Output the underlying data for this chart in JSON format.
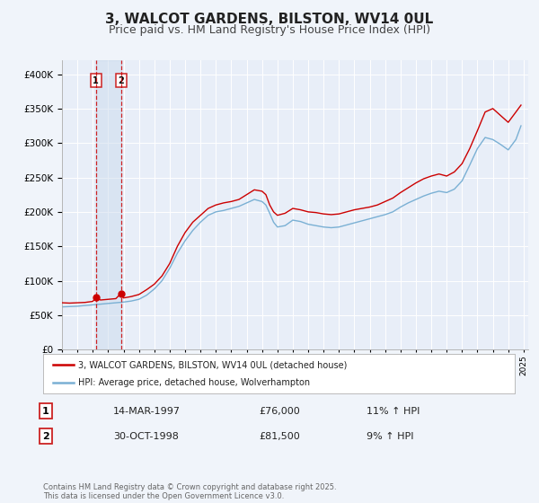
{
  "title": "3, WALCOT GARDENS, BILSTON, WV14 0UL",
  "subtitle": "Price paid vs. HM Land Registry's House Price Index (HPI)",
  "title_fontsize": 11,
  "subtitle_fontsize": 9,
  "ylim": [
    0,
    420000
  ],
  "yticks": [
    0,
    50000,
    100000,
    150000,
    200000,
    250000,
    300000,
    350000,
    400000
  ],
  "bg_color": "#f0f4fa",
  "plot_bg_color": "#e8eef8",
  "grid_color": "#ffffff",
  "line_color_red": "#cc0000",
  "line_color_blue": "#7ab0d4",
  "legend_label_red": "3, WALCOT GARDENS, BILSTON, WV14 0UL (detached house)",
  "legend_label_blue": "HPI: Average price, detached house, Wolverhampton",
  "transaction1_date": "14-MAR-1997",
  "transaction1_price": 76000,
  "transaction1_pct": "11% ↑ HPI",
  "transaction2_date": "30-OCT-1998",
  "transaction2_price": 81500,
  "transaction2_pct": "9% ↑ HPI",
  "footer": "Contains HM Land Registry data © Crown copyright and database right 2025.\nThis data is licensed under the Open Government Licence v3.0.",
  "transaction1_year": 1997.2,
  "transaction2_year": 1998.83,
  "hpi_red_data": [
    [
      1995.0,
      68000
    ],
    [
      1995.5,
      67500
    ],
    [
      1996.0,
      68000
    ],
    [
      1996.5,
      68500
    ],
    [
      1997.0,
      70000
    ],
    [
      1997.2,
      76000
    ],
    [
      1997.5,
      72000
    ],
    [
      1998.0,
      73000
    ],
    [
      1998.5,
      74000
    ],
    [
      1998.83,
      81500
    ],
    [
      1999.0,
      75000
    ],
    [
      1999.5,
      77000
    ],
    [
      2000.0,
      80000
    ],
    [
      2000.5,
      87000
    ],
    [
      2001.0,
      95000
    ],
    [
      2001.5,
      107000
    ],
    [
      2002.0,
      125000
    ],
    [
      2002.5,
      150000
    ],
    [
      2003.0,
      170000
    ],
    [
      2003.5,
      185000
    ],
    [
      2004.0,
      195000
    ],
    [
      2004.5,
      205000
    ],
    [
      2005.0,
      210000
    ],
    [
      2005.5,
      213000
    ],
    [
      2006.0,
      215000
    ],
    [
      2006.5,
      218000
    ],
    [
      2007.0,
      225000
    ],
    [
      2007.5,
      232000
    ],
    [
      2008.0,
      230000
    ],
    [
      2008.25,
      225000
    ],
    [
      2008.5,
      210000
    ],
    [
      2008.75,
      200000
    ],
    [
      2009.0,
      195000
    ],
    [
      2009.5,
      198000
    ],
    [
      2010.0,
      205000
    ],
    [
      2010.5,
      203000
    ],
    [
      2011.0,
      200000
    ],
    [
      2011.5,
      199000
    ],
    [
      2012.0,
      197000
    ],
    [
      2012.5,
      196000
    ],
    [
      2013.0,
      197000
    ],
    [
      2013.5,
      200000
    ],
    [
      2014.0,
      203000
    ],
    [
      2014.5,
      205000
    ],
    [
      2015.0,
      207000
    ],
    [
      2015.5,
      210000
    ],
    [
      2016.0,
      215000
    ],
    [
      2016.5,
      220000
    ],
    [
      2017.0,
      228000
    ],
    [
      2017.5,
      235000
    ],
    [
      2018.0,
      242000
    ],
    [
      2018.5,
      248000
    ],
    [
      2019.0,
      252000
    ],
    [
      2019.5,
      255000
    ],
    [
      2020.0,
      252000
    ],
    [
      2020.5,
      258000
    ],
    [
      2021.0,
      270000
    ],
    [
      2021.5,
      292000
    ],
    [
      2022.0,
      318000
    ],
    [
      2022.5,
      345000
    ],
    [
      2023.0,
      350000
    ],
    [
      2023.5,
      340000
    ],
    [
      2024.0,
      330000
    ],
    [
      2024.5,
      345000
    ],
    [
      2024.83,
      355000
    ]
  ],
  "hpi_blue_data": [
    [
      1995.0,
      62000
    ],
    [
      1995.5,
      62500
    ],
    [
      1996.0,
      63000
    ],
    [
      1996.5,
      64000
    ],
    [
      1997.0,
      65000
    ],
    [
      1997.5,
      66000
    ],
    [
      1998.0,
      67000
    ],
    [
      1998.5,
      68000
    ],
    [
      1999.0,
      69000
    ],
    [
      1999.5,
      70500
    ],
    [
      2000.0,
      73000
    ],
    [
      2000.5,
      79000
    ],
    [
      2001.0,
      88000
    ],
    [
      2001.5,
      100000
    ],
    [
      2002.0,
      118000
    ],
    [
      2002.5,
      140000
    ],
    [
      2003.0,
      158000
    ],
    [
      2003.5,
      173000
    ],
    [
      2004.0,
      185000
    ],
    [
      2004.5,
      195000
    ],
    [
      2005.0,
      200000
    ],
    [
      2005.5,
      202000
    ],
    [
      2006.0,
      205000
    ],
    [
      2006.5,
      208000
    ],
    [
      2007.0,
      213000
    ],
    [
      2007.5,
      218000
    ],
    [
      2008.0,
      215000
    ],
    [
      2008.25,
      210000
    ],
    [
      2008.5,
      198000
    ],
    [
      2008.75,
      185000
    ],
    [
      2009.0,
      178000
    ],
    [
      2009.5,
      180000
    ],
    [
      2010.0,
      188000
    ],
    [
      2010.5,
      186000
    ],
    [
      2011.0,
      182000
    ],
    [
      2011.5,
      180000
    ],
    [
      2012.0,
      178000
    ],
    [
      2012.5,
      177000
    ],
    [
      2013.0,
      178000
    ],
    [
      2013.5,
      181000
    ],
    [
      2014.0,
      184000
    ],
    [
      2014.5,
      187000
    ],
    [
      2015.0,
      190000
    ],
    [
      2015.5,
      193000
    ],
    [
      2016.0,
      196000
    ],
    [
      2016.5,
      200000
    ],
    [
      2017.0,
      207000
    ],
    [
      2017.5,
      213000
    ],
    [
      2018.0,
      218000
    ],
    [
      2018.5,
      223000
    ],
    [
      2019.0,
      227000
    ],
    [
      2019.5,
      230000
    ],
    [
      2020.0,
      228000
    ],
    [
      2020.5,
      233000
    ],
    [
      2021.0,
      245000
    ],
    [
      2021.5,
      268000
    ],
    [
      2022.0,
      292000
    ],
    [
      2022.5,
      308000
    ],
    [
      2023.0,
      305000
    ],
    [
      2023.5,
      298000
    ],
    [
      2024.0,
      290000
    ],
    [
      2024.5,
      305000
    ],
    [
      2024.83,
      325000
    ]
  ]
}
